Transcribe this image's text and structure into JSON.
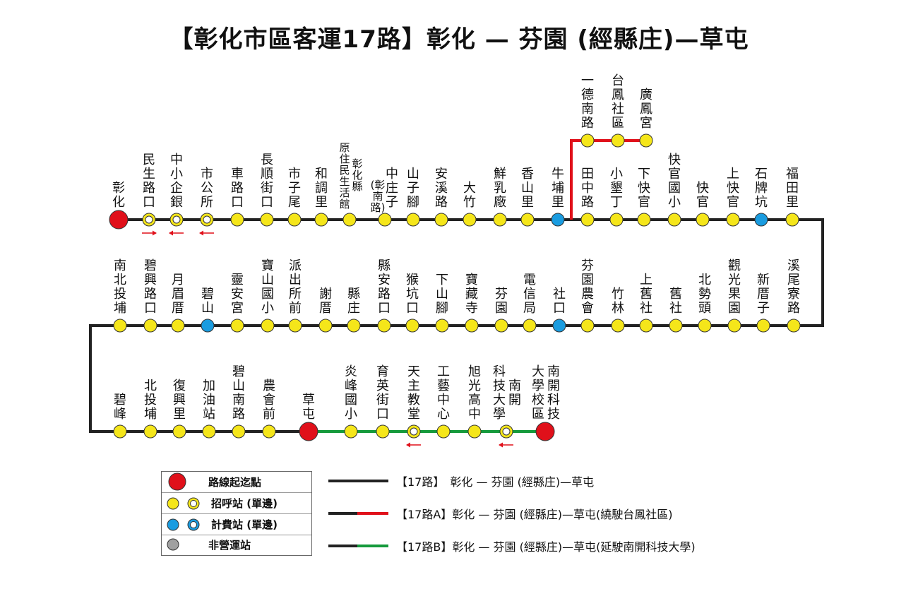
{
  "title": "【彰化市區客運17路】彰化 — 芬園 (經縣庄)—草屯",
  "colors": {
    "line": "#222222",
    "branch_a": "#e0101a",
    "branch_b": "#159a3c",
    "terminal": "#e0101a",
    "stop": "#f5e61a",
    "fare": "#1a9ce0",
    "inactive": "#a0a0a0"
  },
  "row1": [
    {
      "name": "彰化",
      "type": "terminal"
    },
    {
      "name": "民生路口",
      "type": "oneway",
      "arrow": "right"
    },
    {
      "name": "中小企銀",
      "type": "oneway",
      "arrow": "left"
    },
    {
      "name": "市公所",
      "type": "oneway",
      "arrow": "left"
    },
    {
      "name": "車路口",
      "type": "stop"
    },
    {
      "name": "長順街口",
      "type": "stop"
    },
    {
      "name": "市子尾",
      "type": "stop"
    },
    {
      "name": "和調里",
      "type": "stop"
    },
    {
      "name": "原住民生活館",
      "type": "stop",
      "note": "彰化縣"
    },
    {
      "name": "中庄子(彰南路)",
      "type": "stop"
    },
    {
      "name": "山子腳",
      "type": "stop"
    },
    {
      "name": "安溪路",
      "type": "stop"
    },
    {
      "name": "大竹",
      "type": "stop"
    },
    {
      "name": "鮮乳廠",
      "type": "stop"
    },
    {
      "name": "香山里",
      "type": "stop"
    },
    {
      "name": "牛埔里",
      "type": "fare"
    },
    {
      "name": "田中路",
      "type": "stop"
    },
    {
      "name": "小墾丁",
      "type": "stop"
    },
    {
      "name": "下快官",
      "type": "stop"
    },
    {
      "name": "快官國小",
      "type": "stop"
    },
    {
      "name": "快官",
      "type": "stop"
    },
    {
      "name": "上快官",
      "type": "stop"
    },
    {
      "name": "石牌坑",
      "type": "fare"
    },
    {
      "name": "福田里",
      "type": "stop"
    }
  ],
  "branch_a": [
    {
      "name": "一德南路",
      "type": "stop"
    },
    {
      "name": "台鳳社區",
      "type": "stop"
    },
    {
      "name": "廣鳳宮",
      "type": "stop"
    }
  ],
  "row2": [
    {
      "name": "南北投埔",
      "type": "stop"
    },
    {
      "name": "碧興路口",
      "type": "stop"
    },
    {
      "name": "月眉厝",
      "type": "stop"
    },
    {
      "name": "碧山",
      "type": "fare"
    },
    {
      "name": "靈安宮",
      "type": "stop"
    },
    {
      "name": "寶山國小",
      "type": "stop"
    },
    {
      "name": "派出所前",
      "type": "stop"
    },
    {
      "name": "謝厝",
      "type": "stop"
    },
    {
      "name": "縣庄",
      "type": "stop"
    },
    {
      "name": "縣安路口",
      "type": "stop"
    },
    {
      "name": "猴坑口",
      "type": "stop"
    },
    {
      "name": "下山腳",
      "type": "stop"
    },
    {
      "name": "寶藏寺",
      "type": "stop"
    },
    {
      "name": "芬園",
      "type": "stop"
    },
    {
      "name": "電信局",
      "type": "stop"
    },
    {
      "name": "社口",
      "type": "fare"
    },
    {
      "name": "芬園農會",
      "type": "stop"
    },
    {
      "name": "竹林",
      "type": "stop"
    },
    {
      "name": "上舊社",
      "type": "stop"
    },
    {
      "name": "舊社",
      "type": "stop"
    },
    {
      "name": "北勢頭",
      "type": "stop"
    },
    {
      "name": "觀光果園",
      "type": "stop"
    },
    {
      "name": "新厝子",
      "type": "stop"
    },
    {
      "name": "溪尾寮路",
      "type": "stop"
    }
  ],
  "row3": [
    {
      "name": "碧峰",
      "type": "stop"
    },
    {
      "name": "北投埔",
      "type": "stop"
    },
    {
      "name": "復興里",
      "type": "stop"
    },
    {
      "name": "加油站",
      "type": "stop"
    },
    {
      "name": "碧山南路",
      "type": "stop"
    },
    {
      "name": "農會前",
      "type": "stop"
    },
    {
      "name": "草屯",
      "type": "terminal"
    }
  ],
  "branch_b": [
    {
      "name": "炎峰國小",
      "type": "stop"
    },
    {
      "name": "育英街口",
      "type": "stop"
    },
    {
      "name": "天主教堂",
      "type": "oneway",
      "arrow": "left"
    },
    {
      "name": "工藝中心",
      "type": "stop"
    },
    {
      "name": "旭光高中",
      "type": "stop"
    },
    {
      "name": "科技大學",
      "type": "oneway",
      "arrow": "left",
      "note": "南開"
    },
    {
      "name": "大學校區",
      "type": "terminal",
      "note": "南開科技"
    }
  ],
  "legend": [
    {
      "icon": "terminal",
      "label": "路線起迄點"
    },
    {
      "icon": "stop-and-oneway",
      "label": "招呼站 (單邊)"
    },
    {
      "icon": "fare-and-oneway",
      "label": "計費站 (單邊)"
    },
    {
      "icon": "inactive",
      "label": "非營運站"
    }
  ],
  "routes": [
    {
      "style": "main",
      "label": "【17路】　彰化 — 芬園 (經縣庄)—草屯"
    },
    {
      "style": "a",
      "label": "【17路A】彰化 — 芬園 (經縣庄)—草屯(繞駛台鳳社區)"
    },
    {
      "style": "b",
      "label": "【17路B】彰化 — 芬園 (經縣庄)—草屯(延駛南開科技大學)"
    }
  ]
}
